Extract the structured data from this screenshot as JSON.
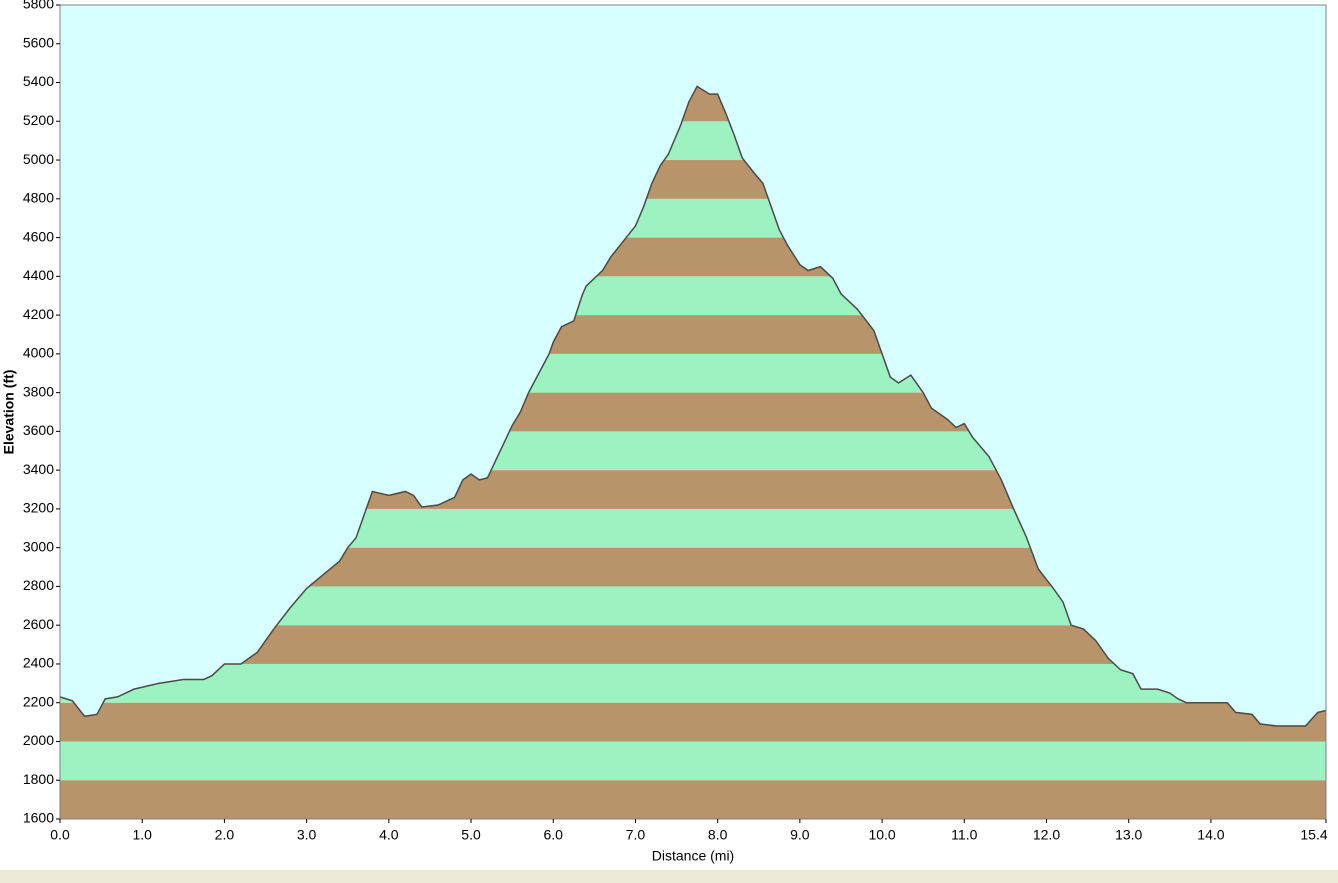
{
  "chart_data": {
    "type": "area",
    "xlabel": "Distance (mi)",
    "ylabel": "Elevation (ft)",
    "x": [
      0.0,
      0.15,
      0.3,
      0.45,
      0.55,
      0.7,
      0.9,
      1.2,
      1.5,
      1.75,
      1.85,
      2.0,
      2.2,
      2.4,
      2.6,
      2.8,
      3.0,
      3.2,
      3.4,
      3.5,
      3.6,
      3.7,
      3.8,
      4.0,
      4.2,
      4.3,
      4.4,
      4.6,
      4.8,
      4.9,
      5.0,
      5.1,
      5.2,
      5.3,
      5.4,
      5.5,
      5.6,
      5.7,
      5.85,
      5.95,
      6.0,
      6.1,
      6.25,
      6.35,
      6.4,
      6.6,
      6.7,
      6.85,
      7.0,
      7.1,
      7.2,
      7.3,
      7.4,
      7.55,
      7.65,
      7.75,
      7.9,
      8.0,
      8.1,
      8.2,
      8.3,
      8.45,
      8.55,
      8.65,
      8.75,
      8.85,
      9.0,
      9.1,
      9.25,
      9.4,
      9.5,
      9.7,
      9.9,
      10.0,
      10.1,
      10.2,
      10.35,
      10.5,
      10.6,
      10.8,
      10.9,
      11.0,
      11.1,
      11.3,
      11.45,
      11.6,
      11.75,
      11.9,
      12.1,
      12.2,
      12.3,
      12.45,
      12.6,
      12.75,
      12.9,
      13.05,
      13.15,
      13.35,
      13.5,
      13.6,
      13.7,
      14.2,
      14.3,
      14.5,
      14.6,
      14.8,
      15.15,
      15.3,
      15.4
    ],
    "values": [
      2230,
      2210,
      2130,
      2140,
      2220,
      2230,
      2270,
      2300,
      2320,
      2320,
      2340,
      2400,
      2400,
      2460,
      2580,
      2690,
      2790,
      2860,
      2930,
      3000,
      3050,
      3170,
      3290,
      3270,
      3290,
      3270,
      3210,
      3220,
      3260,
      3350,
      3380,
      3350,
      3360,
      3450,
      3540,
      3630,
      3700,
      3800,
      3920,
      4000,
      4060,
      4140,
      4170,
      4300,
      4350,
      4430,
      4500,
      4580,
      4660,
      4760,
      4880,
      4970,
      5030,
      5180,
      5300,
      5380,
      5340,
      5340,
      5240,
      5130,
      5010,
      4930,
      4880,
      4760,
      4640,
      4560,
      4460,
      4430,
      4450,
      4390,
      4310,
      4230,
      4120,
      4000,
      3880,
      3850,
      3890,
      3800,
      3720,
      3660,
      3620,
      3640,
      3570,
      3470,
      3350,
      3200,
      3060,
      2890,
      2780,
      2720,
      2600,
      2580,
      2520,
      2430,
      2370,
      2350,
      2270,
      2270,
      2250,
      2220,
      2200,
      2200,
      2150,
      2140,
      2090,
      2080,
      2080,
      2150,
      2160
    ],
    "xlim": [
      0,
      15.4
    ],
    "xticks": [
      {
        "value": 0,
        "label": "0.0"
      },
      {
        "value": 1,
        "label": "1.0"
      },
      {
        "value": 2,
        "label": "2.0"
      },
      {
        "value": 3,
        "label": "3.0"
      },
      {
        "value": 4,
        "label": "4.0"
      },
      {
        "value": 5,
        "label": "5.0"
      },
      {
        "value": 6,
        "label": "6.0"
      },
      {
        "value": 7,
        "label": "7.0"
      },
      {
        "value": 8,
        "label": "8.0"
      },
      {
        "value": 9,
        "label": "9.0"
      },
      {
        "value": 10,
        "label": "10.0"
      },
      {
        "value": 11,
        "label": "11.0"
      },
      {
        "value": 12,
        "label": "12.0"
      },
      {
        "value": 13,
        "label": "13.0"
      },
      {
        "value": 14,
        "label": "14.0"
      },
      15.4
    ],
    "ylim": [
      1600,
      5800
    ],
    "yticks": [
      1600,
      1800,
      2000,
      2200,
      2400,
      2600,
      2800,
      3000,
      3200,
      3400,
      3600,
      3800,
      4000,
      4200,
      4400,
      4600,
      4800,
      5000,
      5200,
      5400,
      5600,
      5800
    ],
    "band_colors": [
      "#b8946a",
      "#9cf2c0"
    ],
    "line_color": "#4a4a4a",
    "background": "#d8ffff"
  }
}
